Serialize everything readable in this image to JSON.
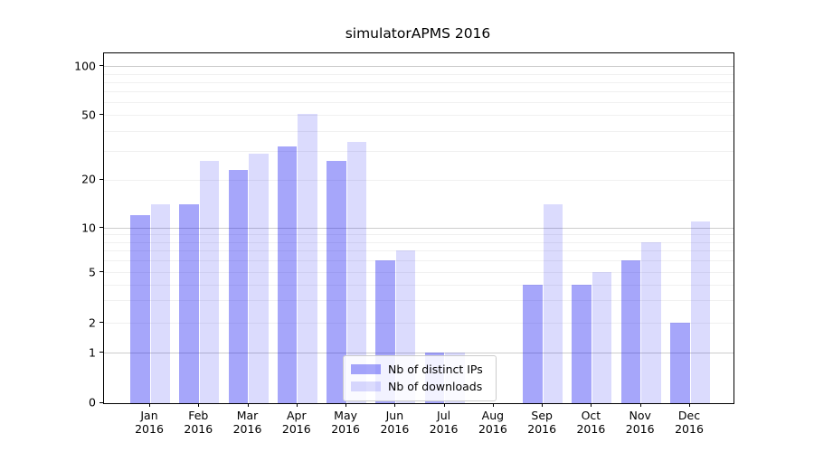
{
  "chart_data": {
    "type": "bar",
    "title": "simulatorAPMS 2016",
    "categories": [
      "Jan 2016",
      "Feb 2016",
      "Mar 2016",
      "Apr 2016",
      "May 2016",
      "Jun 2016",
      "Jul 2016",
      "Aug 2016",
      "Sep 2016",
      "Oct 2016",
      "Nov 2016",
      "Dec 2016"
    ],
    "series": [
      {
        "name": "Nb of distinct IPs",
        "color": "rgba(0,0,240,0.35)",
        "values": [
          12,
          14,
          23,
          32,
          26,
          6,
          1,
          0,
          4,
          4,
          6,
          2
        ]
      },
      {
        "name": "Nb of downloads",
        "color": "rgba(0,0,240,0.14)",
        "values": [
          14,
          26,
          29,
          51,
          34,
          7,
          1,
          0,
          14,
          5,
          8,
          11
        ]
      }
    ],
    "xlabel": "",
    "ylabel": "",
    "yscale": "symlog",
    "ylim": [
      0,
      110
    ],
    "yticks": [
      0,
      1,
      2,
      5,
      10,
      20,
      50,
      100
    ],
    "ytick_labels": [
      "0",
      "1",
      "2",
      "5",
      "10",
      "20",
      "50",
      "100"
    ],
    "minor_yticks": [
      3,
      4,
      6,
      7,
      8,
      9,
      30,
      40,
      60,
      70,
      80,
      90
    ],
    "grid": "horizontal, major decades gray + minor faint",
    "legend_position": "lower center",
    "colors": {
      "major_grid": "#cccccc",
      "minor_grid": "#f0f0f0",
      "spine": "#000000",
      "background": "#ffffff"
    }
  }
}
